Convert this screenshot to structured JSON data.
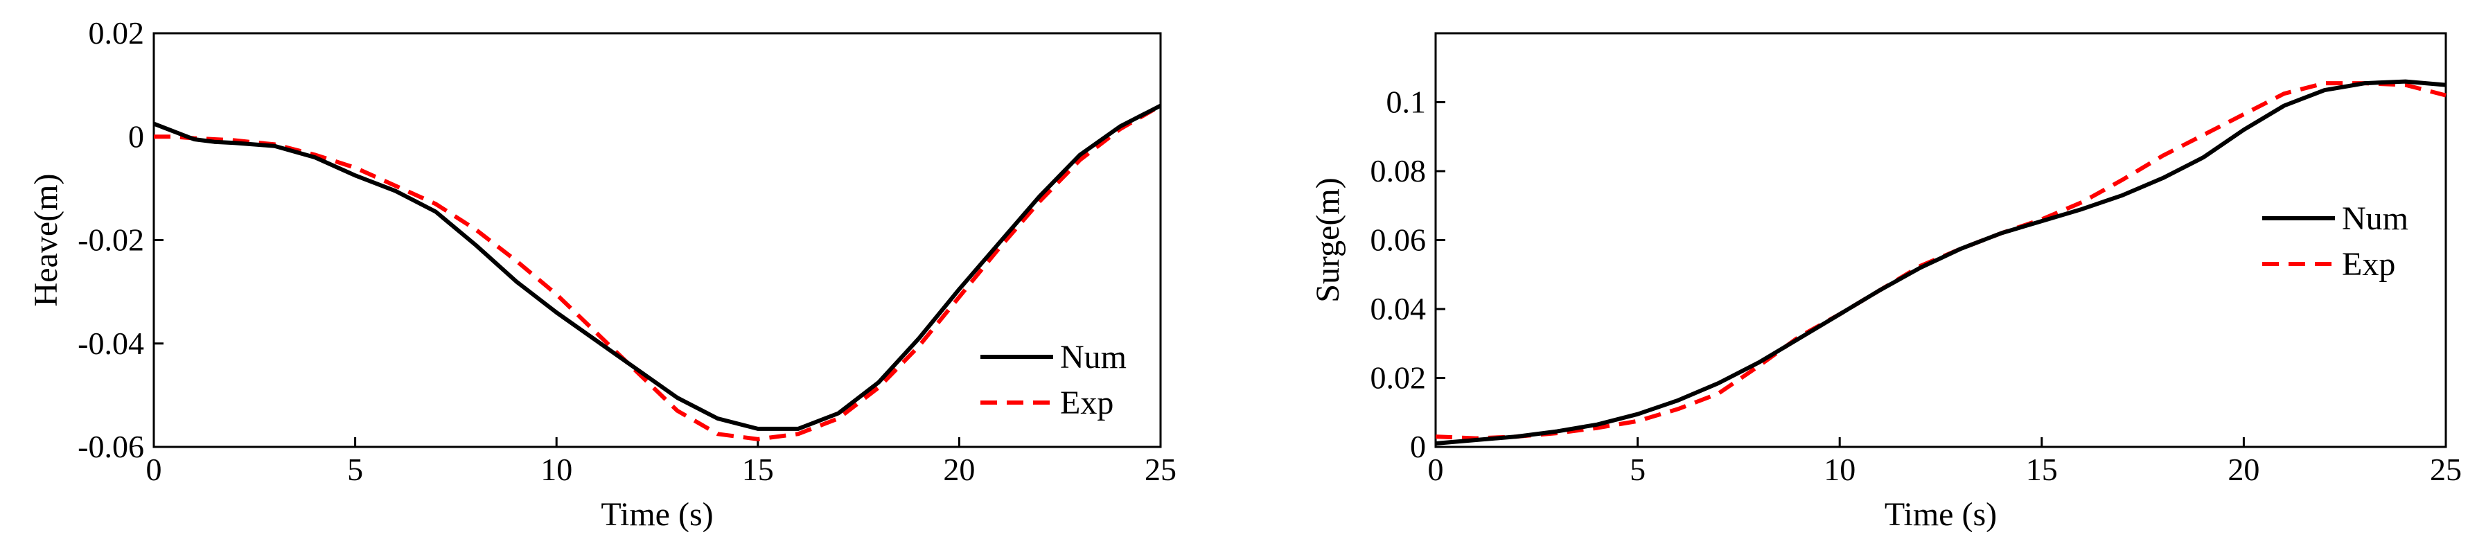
{
  "colors": {
    "num": "#000000",
    "exp": "#ff0000",
    "axis": "#000000"
  },
  "chart_data": [
    {
      "type": "line",
      "title": "",
      "xlabel": "Time (s)",
      "ylabel": "Heave(m)",
      "xlim": [
        0,
        25
      ],
      "ylim": [
        -0.06,
        0.02
      ],
      "xticks": [
        0,
        5,
        10,
        15,
        20,
        25
      ],
      "yticks": [
        -0.06,
        -0.04,
        -0.02,
        0,
        0.02
      ],
      "xtick_labels": [
        "0",
        "5",
        "10",
        "15",
        "20",
        "25"
      ],
      "ytick_labels": [
        "-0.06",
        "-0.04",
        "-0.02",
        "0",
        "0.02"
      ],
      "grid": false,
      "legend_position": "lower-right",
      "series": [
        {
          "name": "Num",
          "style": "solid",
          "x": [
            0,
            0.5,
            1,
            1.5,
            2,
            3,
            4,
            5,
            6,
            7,
            8,
            9,
            10,
            11,
            12,
            13,
            14,
            15,
            16,
            17,
            18,
            19,
            20,
            21,
            22,
            23,
            24,
            25
          ],
          "y": [
            0.0025,
            0.001,
            -0.0005,
            -0.001,
            -0.0012,
            -0.0018,
            -0.004,
            -0.0075,
            -0.0105,
            -0.0145,
            -0.021,
            -0.028,
            -0.034,
            -0.0395,
            -0.045,
            -0.0505,
            -0.0545,
            -0.0565,
            -0.0565,
            -0.0535,
            -0.0475,
            -0.039,
            -0.0295,
            -0.0205,
            -0.0115,
            -0.0035,
            0.002,
            0.006
          ]
        },
        {
          "name": "Exp",
          "style": "dashed",
          "x": [
            0,
            0.5,
            1,
            1.5,
            2,
            3,
            4,
            5,
            6,
            7,
            8,
            9,
            10,
            11,
            12,
            13,
            14,
            15,
            16,
            17,
            18,
            19,
            20,
            21,
            22,
            23,
            24,
            25
          ],
          "y": [
            0.0,
            0.0,
            -0.0003,
            -0.0005,
            -0.0007,
            -0.0015,
            -0.0035,
            -0.006,
            -0.0095,
            -0.013,
            -0.018,
            -0.024,
            -0.0305,
            -0.038,
            -0.0455,
            -0.053,
            -0.0575,
            -0.0585,
            -0.0575,
            -0.0545,
            -0.0485,
            -0.0405,
            -0.031,
            -0.0215,
            -0.0125,
            -0.0045,
            0.0015,
            0.006
          ]
        }
      ]
    },
    {
      "type": "line",
      "title": "",
      "xlabel": "Time (s)",
      "ylabel": "Surge(m)",
      "xlim": [
        0,
        25
      ],
      "ylim": [
        0,
        0.12
      ],
      "xticks": [
        0,
        5,
        10,
        15,
        20,
        25
      ],
      "yticks": [
        0,
        0.02,
        0.04,
        0.06,
        0.08,
        0.1
      ],
      "xtick_labels": [
        "0",
        "5",
        "10",
        "15",
        "20",
        "25"
      ],
      "ytick_labels": [
        "0",
        "0.02",
        "0.04",
        "0.06",
        "0.08",
        "0.1"
      ],
      "grid": false,
      "legend_position": "right",
      "series": [
        {
          "name": "Num",
          "style": "solid",
          "x": [
            0,
            1,
            2,
            3,
            4,
            5,
            6,
            7,
            8,
            9,
            10,
            11,
            12,
            13,
            14,
            15,
            16,
            17,
            18,
            19,
            20,
            21,
            22,
            23,
            24,
            25
          ],
          "y": [
            0.001,
            0.002,
            0.003,
            0.0045,
            0.0065,
            0.0095,
            0.0135,
            0.0185,
            0.0245,
            0.0315,
            0.0385,
            0.0455,
            0.052,
            0.0575,
            0.062,
            0.0655,
            0.069,
            0.073,
            0.078,
            0.084,
            0.092,
            0.099,
            0.1035,
            0.1055,
            0.106,
            0.105
          ]
        },
        {
          "name": "Exp",
          "style": "dashed",
          "x": [
            0,
            1,
            2,
            3,
            4,
            5,
            6,
            7,
            8,
            9,
            10,
            11,
            12,
            13,
            14,
            15,
            16,
            17,
            18,
            19,
            20,
            21,
            22,
            23,
            24,
            25
          ],
          "y": [
            0.003,
            0.0025,
            0.003,
            0.004,
            0.0055,
            0.0075,
            0.011,
            0.0155,
            0.0235,
            0.032,
            0.0385,
            0.0455,
            0.0525,
            0.0575,
            0.062,
            0.066,
            0.071,
            0.0775,
            0.0845,
            0.0905,
            0.0965,
            0.1025,
            0.1055,
            0.1055,
            0.105,
            0.102
          ]
        }
      ]
    }
  ]
}
